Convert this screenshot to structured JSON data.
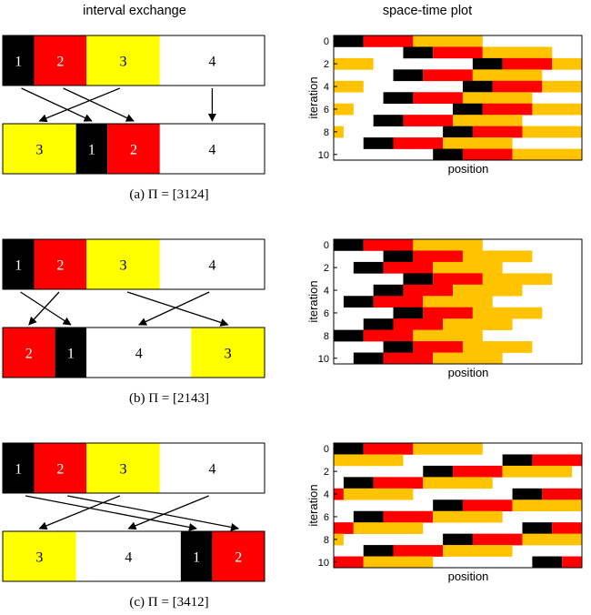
{
  "headers": {
    "left": "interval exchange",
    "right": "space-time plot"
  },
  "colors": {
    "interval_1": "#000000",
    "interval_2": "#ff0000",
    "interval_3_exchange": "#ffff00",
    "interval_3_plot": "#ffc300",
    "interval_4": "#ffffff",
    "outline": "#000000"
  },
  "panels": [
    {
      "caption": "(a) Π = [3124]",
      "permutation": [
        3,
        1,
        2,
        4
      ],
      "top_labels": [
        "1",
        "2",
        "3",
        "4"
      ],
      "bottom_labels": [
        "3",
        "1",
        "2",
        "4"
      ],
      "plot": {
        "ylabel": "iteration",
        "xlabel": "position",
        "yticks": [
          "0",
          "2",
          "4",
          "6",
          "8",
          "10"
        ]
      }
    },
    {
      "caption": "(b) Π = [2143]",
      "permutation": [
        2,
        1,
        4,
        3
      ],
      "top_labels": [
        "1",
        "2",
        "3",
        "4"
      ],
      "bottom_labels": [
        "2",
        "1",
        "4",
        "3"
      ],
      "plot": {
        "ylabel": "iteration",
        "xlabel": "position",
        "yticks": [
          "0",
          "2",
          "4",
          "6",
          "8",
          "10"
        ]
      }
    },
    {
      "caption": "(c) Π = [3412]",
      "permutation": [
        3,
        4,
        1,
        2
      ],
      "top_labels": [
        "1",
        "2",
        "3",
        "4"
      ],
      "bottom_labels": [
        "3",
        "4",
        "1",
        "2"
      ],
      "plot": {
        "ylabel": "iteration",
        "xlabel": "position",
        "yticks": [
          "0",
          "2",
          "4",
          "6",
          "8",
          "10"
        ]
      }
    }
  ]
}
